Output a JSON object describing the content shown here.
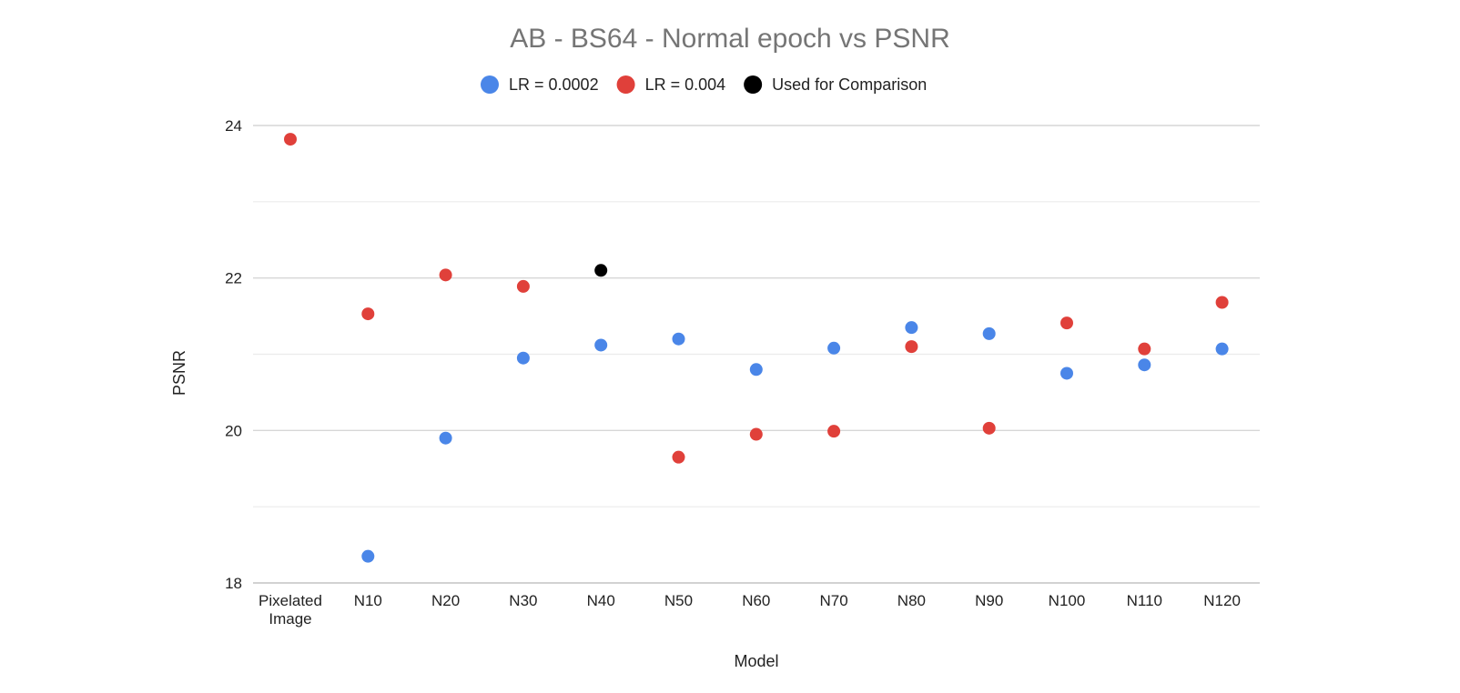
{
  "chart_data": {
    "type": "scatter",
    "title": "AB - BS64 - Normal epoch vs PSNR",
    "xlabel": "Model",
    "ylabel": "PSNR",
    "categories": [
      "Pixelated Image",
      "N10",
      "N20",
      "N30",
      "N40",
      "N50",
      "N60",
      "N70",
      "N80",
      "N90",
      "N100",
      "N110",
      "N120"
    ],
    "category_label_lines": [
      [
        "Pixelated",
        "Image"
      ],
      [
        "N10"
      ],
      [
        "N20"
      ],
      [
        "N30"
      ],
      [
        "N40"
      ],
      [
        "N50"
      ],
      [
        "N60"
      ],
      [
        "N70"
      ],
      [
        "N80"
      ],
      [
        "N90"
      ],
      [
        "N100"
      ],
      [
        "N110"
      ],
      [
        "N120"
      ]
    ],
    "ylim": [
      18,
      24
    ],
    "yticks": [
      18,
      20,
      22,
      24
    ],
    "minor_gridlines": [
      19,
      21,
      23
    ],
    "grid": true,
    "legend_position": "top",
    "series": [
      {
        "name": "LR = 0.0002",
        "color": "#4a86e8",
        "values": [
          null,
          18.35,
          19.9,
          20.95,
          21.12,
          21.2,
          20.8,
          21.08,
          21.35,
          21.27,
          20.75,
          20.86,
          21.07
        ]
      },
      {
        "name": "LR = 0.004",
        "color": "#e0403a",
        "values": [
          23.82,
          21.53,
          22.04,
          21.89,
          null,
          19.65,
          19.95,
          19.99,
          21.1,
          20.03,
          21.41,
          21.07,
          21.68
        ]
      },
      {
        "name": "Used for Comparison",
        "color": "#000000",
        "values": [
          null,
          null,
          null,
          null,
          22.1,
          null,
          null,
          null,
          null,
          null,
          null,
          null,
          null
        ]
      }
    ]
  }
}
